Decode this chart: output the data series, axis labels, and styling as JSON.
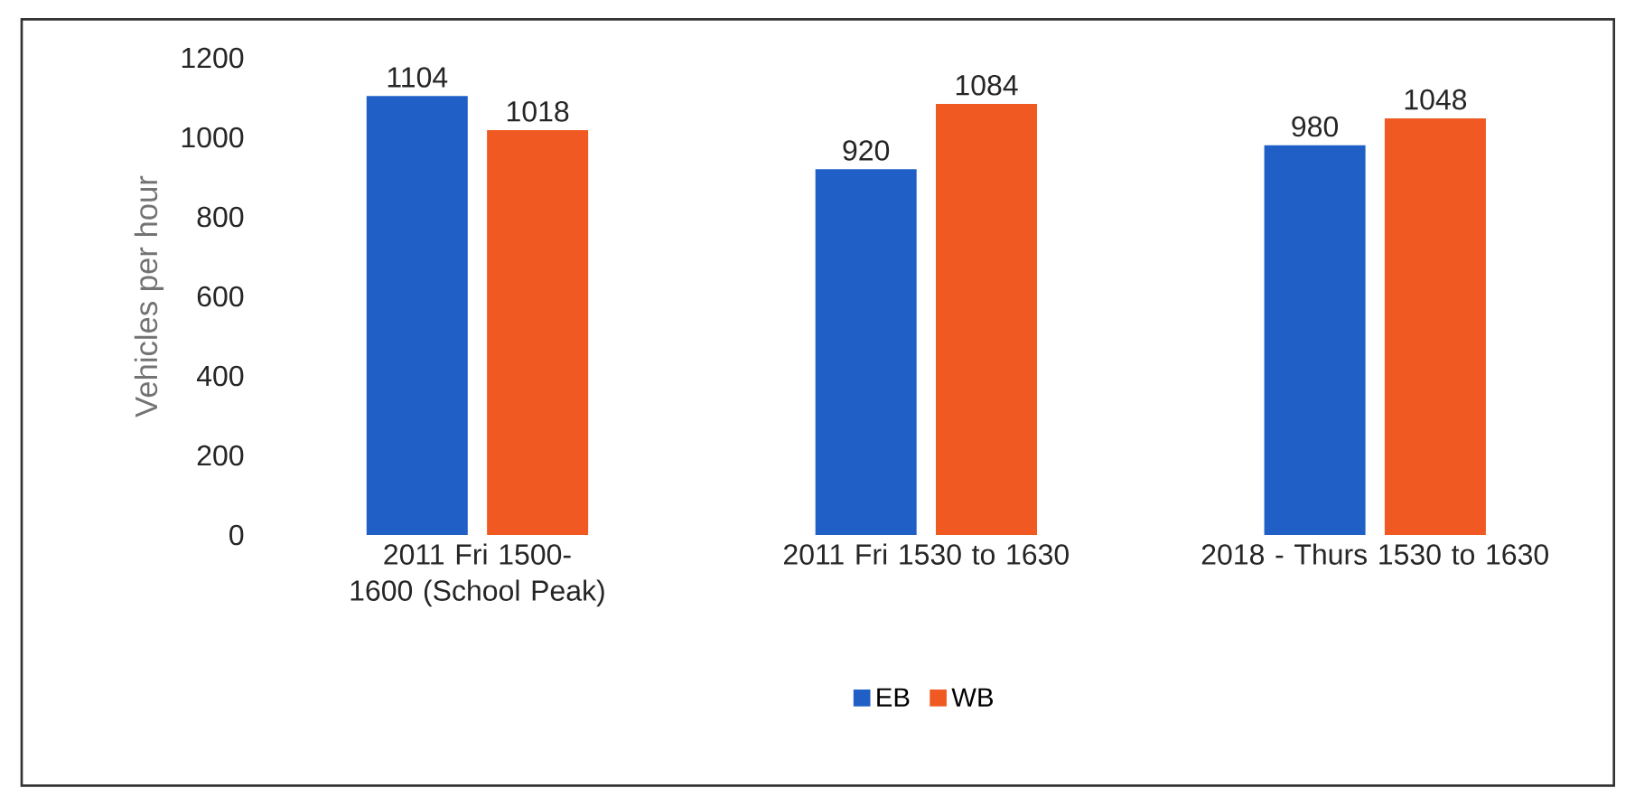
{
  "chart_data": {
    "type": "bar",
    "ylabel": "Vehicles per hour",
    "categories": [
      "2011 Fri 1500-1600 (School Peak)",
      "2011 Fri 1530 to 1630",
      "2018 - Thurs 1530 to 1630"
    ],
    "series": [
      {
        "name": "EB",
        "color": "#1f5fc6",
        "values": [
          1104,
          920,
          980
        ]
      },
      {
        "name": "WB",
        "color": "#f05a22",
        "values": [
          1018,
          1084,
          1048
        ]
      }
    ],
    "ylim": [
      0,
      1200
    ],
    "yticks": [
      0,
      200,
      400,
      600,
      800,
      1000,
      1200
    ],
    "data_labels": true,
    "legend": "bottom"
  }
}
